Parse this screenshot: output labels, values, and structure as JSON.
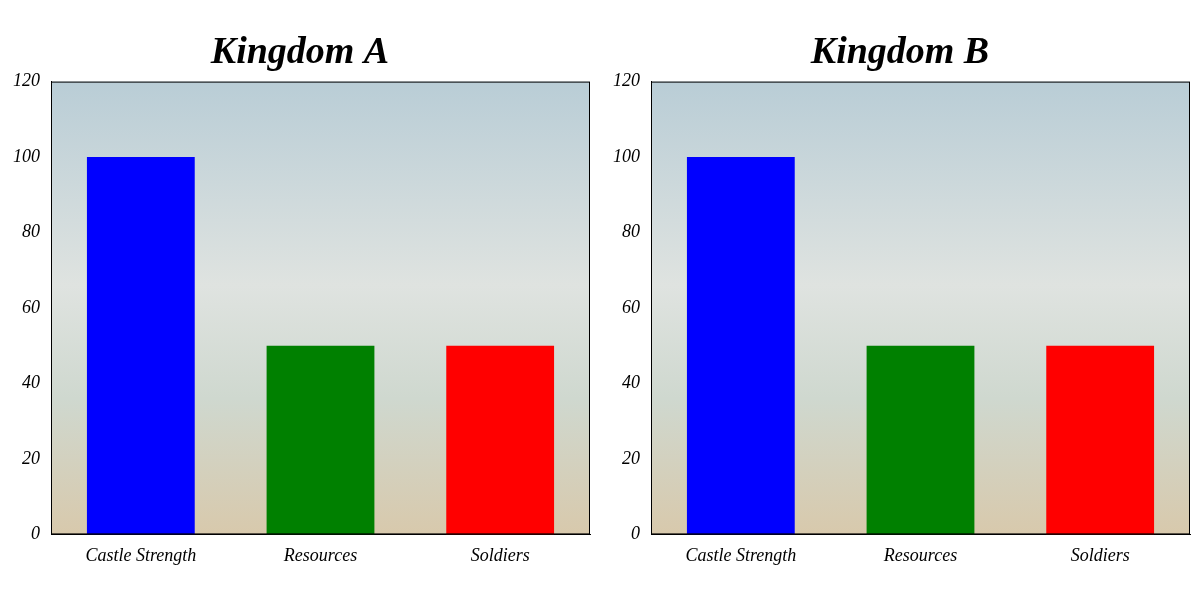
{
  "chart_data": [
    {
      "type": "bar",
      "title": "Kingdom A",
      "categories": [
        "Castle Strength",
        "Resources",
        "Soldiers"
      ],
      "values": [
        100,
        50,
        50
      ],
      "colors": [
        "#0000ff",
        "#008000",
        "#ff0000"
      ],
      "ylim": [
        0,
        120
      ],
      "yticks": [
        0,
        20,
        40,
        60,
        80,
        100,
        120
      ],
      "grid": false
    },
    {
      "type": "bar",
      "title": "Kingdom B",
      "categories": [
        "Castle Strength",
        "Resources",
        "Soldiers"
      ],
      "values": [
        100,
        50,
        50
      ],
      "colors": [
        "#0000ff",
        "#008000",
        "#ff0000"
      ],
      "ylim": [
        0,
        120
      ],
      "yticks": [
        0,
        20,
        40,
        60,
        80,
        100,
        120
      ],
      "grid": false
    }
  ]
}
